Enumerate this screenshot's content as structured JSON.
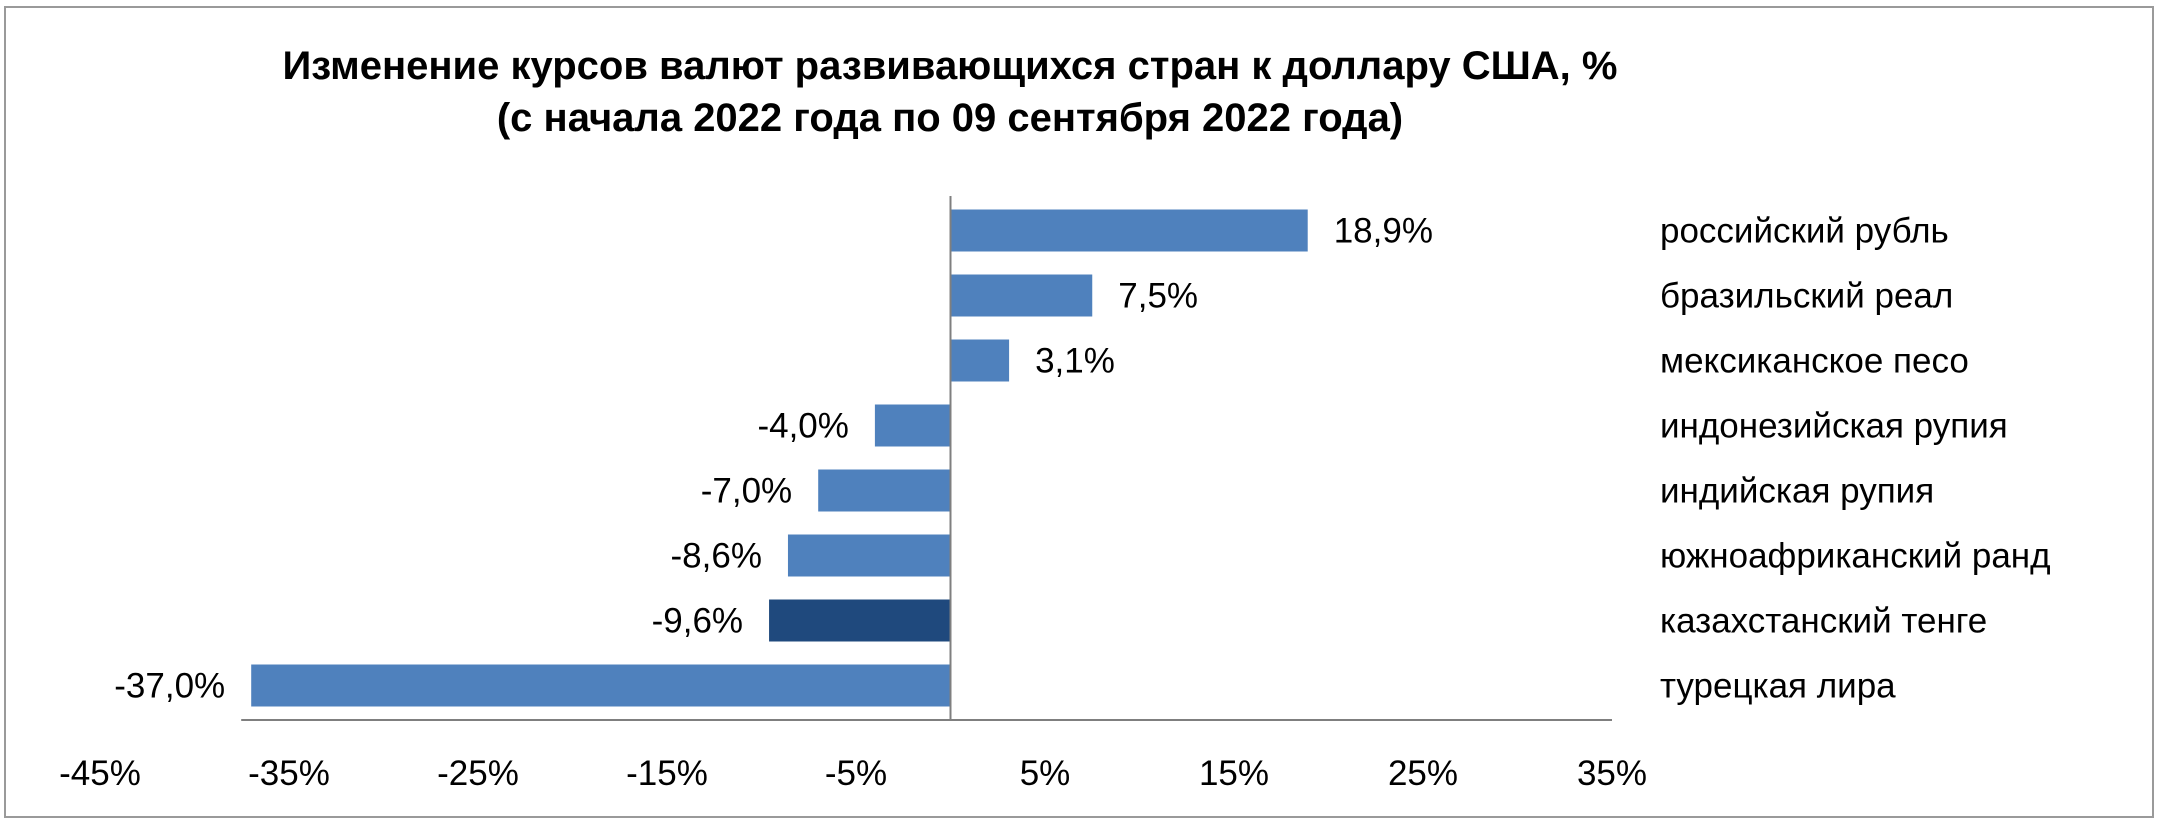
{
  "chart_data": {
    "type": "bar",
    "orientation": "horizontal",
    "title": "Изменение курсов валют развивающихся стран к доллару США, %",
    "subtitle": "(с начала 2022 года по 09 сентября 2022 года)",
    "xlim": [
      -45,
      35
    ],
    "x_ticks": [
      "-45%",
      "-35%",
      "-25%",
      "-15%",
      "-5%",
      "5%",
      "15%",
      "25%",
      "35%"
    ],
    "x_tick_values": [
      -45,
      -35,
      -25,
      -15,
      -5,
      5,
      15,
      25,
      35
    ],
    "grid": false,
    "legend": "none",
    "categories": [
      "российский рубль",
      "бразильский реал",
      "мексиканское песо",
      "индонезийская рупия",
      "индийская рупия",
      "южноафриканский ранд",
      "казахстанский тенге",
      "турецкая лира"
    ],
    "values": [
      18.9,
      7.5,
      3.1,
      -4.0,
      -7.0,
      -8.6,
      -9.6,
      -37.0
    ],
    "value_labels": [
      "18,9%",
      "7,5%",
      "3,1%",
      "-4,0%",
      "-7,0%",
      "-8,6%",
      "-9,6%",
      "-37,0%"
    ],
    "highlight_category": "казахстанский тенге",
    "colors": {
      "bar": "#4f81bd",
      "highlight": "#1f497d",
      "axis": "#7f7f7f",
      "text": "#000000"
    }
  }
}
